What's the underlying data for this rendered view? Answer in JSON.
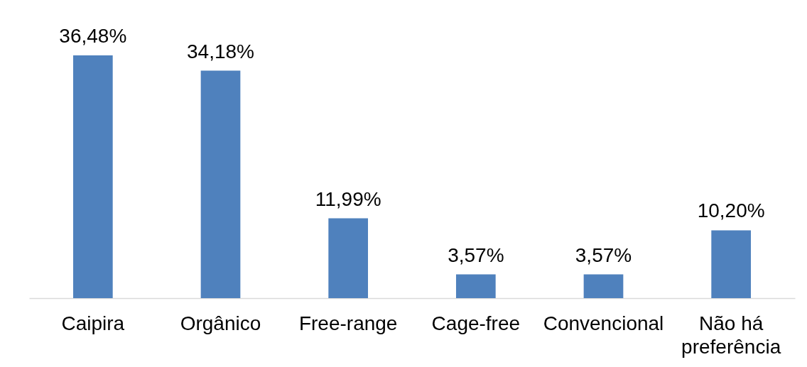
{
  "chart_data": {
    "type": "bar",
    "categories": [
      "Caipira",
      "Orgânico",
      "Free-range",
      "Cage-free",
      "Convencional",
      "Não há preferência"
    ],
    "values": [
      36.48,
      34.18,
      11.99,
      3.57,
      3.57,
      10.2
    ],
    "value_labels": [
      "36,48%",
      "34,18%",
      "11,99%",
      "3,57%",
      "3,57%",
      "10,20%"
    ],
    "color": "#4f81bd"
  }
}
